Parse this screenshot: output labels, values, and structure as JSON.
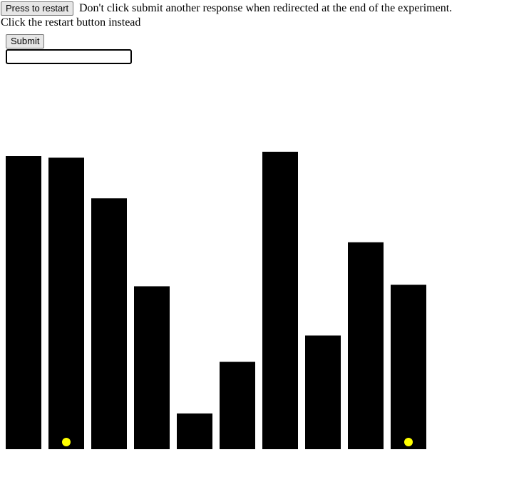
{
  "controls": {
    "restart_label": "Press to restart",
    "submit_label": "Submit",
    "response_value": ""
  },
  "instructions": {
    "line1": "Don't click submit another response when redirected at the end of the experiment.",
    "line2": "Click the restart button instead"
  },
  "colors": {
    "bar": "#000000",
    "marker": "#ffff00"
  },
  "chart_data": {
    "type": "bar",
    "ylim": [
      0,
      100
    ],
    "grid": false,
    "values": [
      100,
      99.5,
      85.6,
      55.6,
      12.2,
      29.8,
      101.5,
      38.8,
      70.6,
      56.1
    ],
    "markers": [
      false,
      true,
      false,
      false,
      false,
      false,
      false,
      false,
      false,
      true
    ]
  }
}
